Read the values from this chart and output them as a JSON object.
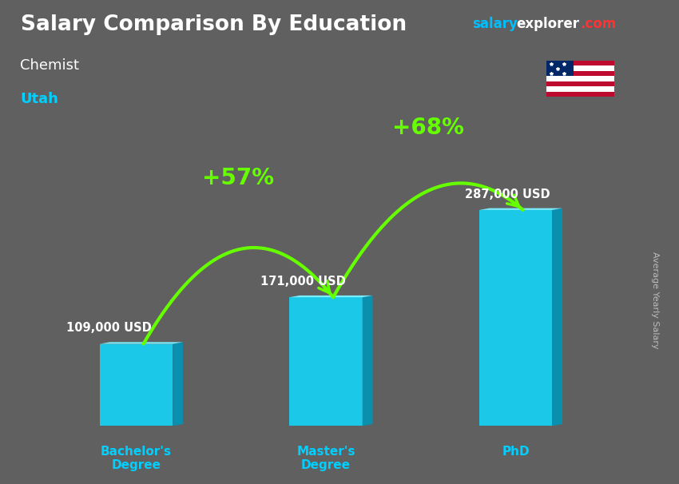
{
  "title": "Salary Comparison By Education",
  "subtitle_job": "Chemist",
  "subtitle_location": "Utah",
  "categories": [
    "Bachelor's\nDegree",
    "Master's\nDegree",
    "PhD"
  ],
  "values": [
    109000,
    171000,
    287000
  ],
  "value_labels": [
    "109,000 USD",
    "171,000 USD",
    "287,000 USD"
  ],
  "bar_color_front": "#1BC8E8",
  "bar_color_top": "#7AEEFF",
  "bar_color_side": "#0B8FAF",
  "background_color": "#606060",
  "title_color": "#FFFFFF",
  "subtitle_job_color": "#FFFFFF",
  "subtitle_location_color": "#00CFFF",
  "category_color": "#00CFFF",
  "value_label_color": "#FFFFFF",
  "arrow_color": "#66FF00",
  "pct_labels": [
    "+57%",
    "+68%"
  ],
  "pct_color": "#66FF00",
  "ylabel_text": "Average Yearly Salary",
  "ylabel_color": "#BBBBBB",
  "website_salary_color": "#00BFFF",
  "website_explorer_color": "#FFFFFF",
  "website_com_color": "#FF3333",
  "figsize": [
    8.5,
    6.06
  ],
  "dpi": 100
}
